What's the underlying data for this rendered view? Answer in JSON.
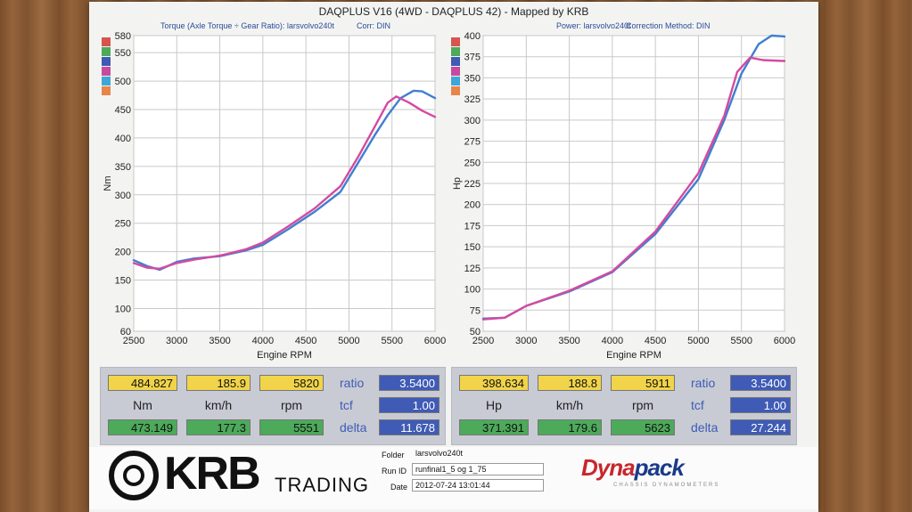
{
  "header": {
    "title": "DAQPLUS V16 (4WD - DAQPLUS 42) - Mapped by KRB",
    "torque_sub": "Torque (Axle Torque ÷ Gear Ratio): larsvolvo240t",
    "torque_corr": "Corr: DIN",
    "power_sub": "Power: larsvolvo240t",
    "power_corr": "Correction Method: DIN"
  },
  "legend_swatch_colors": [
    "#d9534f",
    "#4caa5a",
    "#3f5bb5",
    "#c64aa0",
    "#3fa7d6",
    "#e8854a"
  ],
  "chart_data": [
    {
      "type": "line",
      "xlabel": "Engine RPM",
      "ylabel": "Nm",
      "xlim": [
        2500,
        6000
      ],
      "ylim": [
        60,
        580
      ],
      "x_ticks": [
        2500,
        3000,
        3500,
        4000,
        4500,
        5000,
        5500,
        6000
      ],
      "y_ticks": [
        60,
        100,
        150,
        200,
        250,
        300,
        350,
        400,
        450,
        500,
        550,
        580
      ],
      "grid": true,
      "series": [
        {
          "color": "#3f7fd0",
          "x": [
            2500,
            2650,
            2800,
            3000,
            3200,
            3500,
            3800,
            4000,
            4300,
            4600,
            4900,
            5100,
            5300,
            5450,
            5600,
            5750,
            5850,
            6000
          ],
          "y": [
            185,
            175,
            168,
            182,
            188,
            192,
            202,
            212,
            240,
            270,
            305,
            355,
            405,
            440,
            470,
            483,
            482,
            470
          ]
        },
        {
          "color": "#d54aa0",
          "x": [
            2500,
            2650,
            2800,
            3000,
            3200,
            3500,
            3800,
            4000,
            4300,
            4600,
            4900,
            5100,
            5300,
            5450,
            5550,
            5700,
            5850,
            6000
          ],
          "y": [
            180,
            172,
            170,
            180,
            186,
            193,
            204,
            216,
            245,
            276,
            315,
            365,
            420,
            462,
            473,
            462,
            448,
            437
          ]
        }
      ]
    },
    {
      "type": "line",
      "xlabel": "Engine RPM",
      "ylabel": "Hp",
      "xlim": [
        2500,
        6000
      ],
      "ylim": [
        50,
        400
      ],
      "x_ticks": [
        2500,
        3000,
        3500,
        4000,
        4500,
        5000,
        5500,
        6000
      ],
      "y_ticks": [
        50,
        75,
        100,
        125,
        150,
        175,
        200,
        225,
        250,
        275,
        300,
        325,
        350,
        375,
        400
      ],
      "grid": true,
      "series": [
        {
          "color": "#3f7fd0",
          "x": [
            2500,
            2750,
            3000,
            3500,
            4000,
            4500,
            5000,
            5300,
            5500,
            5700,
            5850,
            6000
          ],
          "y": [
            65,
            66,
            80,
            97,
            120,
            165,
            230,
            300,
            355,
            390,
            400,
            399
          ]
        },
        {
          "color": "#d54aa0",
          "x": [
            2500,
            2750,
            3000,
            3500,
            4000,
            4500,
            5000,
            5300,
            5450,
            5600,
            5750,
            6000
          ],
          "y": [
            64,
            66,
            80,
            98,
            121,
            168,
            237,
            305,
            357,
            374,
            371,
            370
          ]
        }
      ]
    }
  ],
  "panels": [
    {
      "max_nm": "484.827",
      "max_kmh": "185.9",
      "max_rpm": "5820",
      "unit1": "Nm",
      "unit2": "km/h",
      "unit3": "rpm",
      "cur_nm": "473.149",
      "cur_kmh": "177.3",
      "cur_rpm": "5551",
      "ratio_label": "ratio",
      "ratio": "3.5400",
      "tcf_label": "tcf",
      "tcf": "1.00",
      "delta_label": "delta",
      "delta": "11.678"
    },
    {
      "max_nm": "398.634",
      "max_kmh": "188.8",
      "max_rpm": "5911",
      "unit1": "Hp",
      "unit2": "km/h",
      "unit3": "rpm",
      "cur_nm": "371.391",
      "cur_kmh": "179.6",
      "cur_rpm": "5623",
      "ratio_label": "ratio",
      "ratio": "3.5400",
      "tcf_label": "tcf",
      "tcf": "1.00",
      "delta_label": "delta",
      "delta": "27.244"
    }
  ],
  "footer": {
    "brand": "KRB",
    "brand_sub": "TRADING",
    "folder_label": "Folder",
    "folder": "larsvolvo240t",
    "runid_label": "Run ID",
    "runid": "runfinal1_5 og 1_75",
    "date_label": "Date",
    "date": "2012-07-24 13:01:44",
    "dyna_a": "Dyna",
    "dyna_b": "pack",
    "dyna_sub": "CHASSIS DYNAMOMETERS"
  }
}
